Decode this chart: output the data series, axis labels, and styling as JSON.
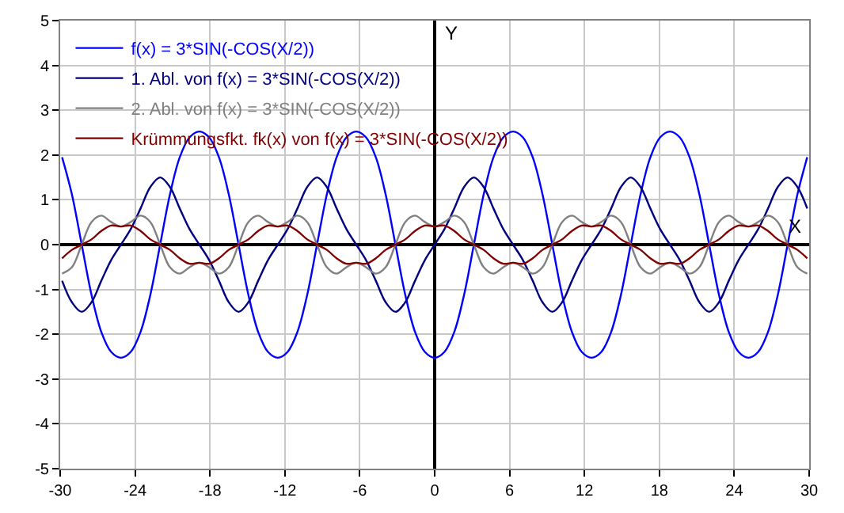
{
  "chart_data": {
    "type": "line",
    "xlabel": "X",
    "ylabel": "Y",
    "x": [
      -29.845,
      -29.06,
      -28.274,
      -27.489,
      -26.704,
      -25.918,
      -25.133,
      -24.347,
      -23.562,
      -22.777,
      -21.991,
      -21.206,
      -20.42,
      -19.635,
      -18.85,
      -18.064,
      -17.279,
      -16.493,
      -15.708,
      -14.923,
      -14.137,
      -13.352,
      -12.566,
      -11.781,
      -10.996,
      -10.21,
      -9.425,
      -8.639,
      -7.854,
      -7.069,
      -6.283,
      -5.498,
      -4.712,
      -3.927,
      -3.142,
      -2.356,
      -1.571,
      -0.785,
      0,
      0.785,
      1.571,
      2.356,
      3.142,
      3.927,
      4.712,
      5.498,
      6.283,
      7.069,
      7.854,
      8.639,
      9.425,
      10.21,
      10.996,
      11.781,
      12.566,
      13.352,
      14.137,
      14.923,
      15.708,
      16.493,
      17.279,
      18.064,
      18.85,
      19.635,
      20.42,
      21.206,
      21.991,
      22.777,
      23.562,
      24.347,
      25.133,
      25.918,
      26.704,
      27.489,
      28.274,
      29.06,
      29.845
    ],
    "series": [
      {
        "name": "f(x) = 3*SIN(-COS(X/2))",
        "color": "#0000ff",
        "values": [
          1.949,
          1.12,
          0,
          -1.12,
          -1.949,
          -2.394,
          -2.524,
          -2.394,
          -1.949,
          -1.12,
          0,
          1.12,
          1.949,
          2.394,
          2.524,
          2.394,
          1.949,
          1.12,
          0,
          -1.12,
          -1.949,
          -2.394,
          -2.524,
          -2.394,
          -1.949,
          -1.12,
          0,
          1.12,
          1.949,
          2.394,
          2.524,
          2.394,
          1.949,
          1.12,
          0,
          -1.12,
          -1.949,
          -2.394,
          -2.524,
          -2.394,
          -1.949,
          -1.12,
          0,
          1.12,
          1.949,
          2.394,
          2.524,
          2.394,
          1.949,
          1.12,
          0,
          -1.12,
          -1.949,
          -2.394,
          -2.524,
          -2.394,
          -1.949,
          -1.12,
          0,
          1.12,
          1.949,
          2.394,
          2.524,
          2.394,
          1.949,
          1.12,
          0,
          -1.12,
          -1.949,
          -2.394,
          -2.524,
          -2.394,
          -1.949,
          -1.12,
          0,
          1.12,
          1.949
        ]
      },
      {
        "name": "1. Abl. von f(x) = 3*SIN(-COS(X/2))",
        "color": "#000080",
        "values": [
          -0.806,
          -1.286,
          -1.5,
          -1.286,
          -0.806,
          -0.346,
          0,
          0.346,
          0.806,
          1.286,
          1.5,
          1.286,
          0.806,
          0.346,
          0,
          -0.346,
          -0.806,
          -1.286,
          -1.5,
          -1.286,
          -0.806,
          -0.346,
          0,
          0.346,
          0.806,
          1.286,
          1.5,
          1.286,
          0.806,
          0.346,
          0,
          -0.346,
          -0.806,
          -1.286,
          -1.5,
          -1.286,
          -0.806,
          -0.346,
          0,
          0.346,
          0.806,
          1.286,
          1.5,
          1.286,
          0.806,
          0.346,
          0,
          -0.346,
          -0.806,
          -1.286,
          -1.5,
          -1.286,
          -0.806,
          -0.346,
          0,
          0.346,
          0.806,
          1.286,
          1.5,
          1.286,
          0.806,
          0.346,
          0,
          -0.346,
          -0.806,
          -1.286,
          -1.5,
          -1.286,
          -0.806,
          -0.346,
          0,
          0.346,
          0.806,
          1.286,
          1.5,
          1.286,
          0.806
        ]
      },
      {
        "name": "2. Abl. von f(x) = 3*SIN(-COS(X/2))",
        "color": "#808080",
        "values": [
          -0.647,
          -0.505,
          0,
          0.505,
          0.647,
          0.505,
          0.405,
          0.505,
          0.647,
          0.505,
          0,
          -0.505,
          -0.647,
          -0.505,
          -0.405,
          -0.505,
          -0.647,
          -0.505,
          0,
          0.505,
          0.647,
          0.505,
          0.405,
          0.505,
          0.647,
          0.505,
          0,
          -0.505,
          -0.647,
          -0.505,
          -0.405,
          -0.505,
          -0.647,
          -0.505,
          0,
          0.505,
          0.647,
          0.505,
          0.405,
          0.505,
          0.647,
          0.505,
          0,
          -0.505,
          -0.647,
          -0.505,
          -0.405,
          -0.505,
          -0.647,
          -0.505,
          0,
          0.505,
          0.647,
          0.505,
          0.405,
          0.505,
          0.647,
          0.505,
          0,
          -0.505,
          -0.647,
          -0.505,
          -0.405,
          -0.505,
          -0.647,
          -0.505,
          0,
          0.505,
          0.647,
          0.505,
          0.405,
          0.505,
          0.647,
          0.505,
          0,
          -0.505,
          -0.647
        ]
      },
      {
        "name": "Krümmungsfkt. fk(x) von f(x) = 3*SIN(-COS(X/2))",
        "color": "#800000",
        "values": [
          -0.305,
          -0.117,
          0,
          0.117,
          0.305,
          0.426,
          0.405,
          0.426,
          0.305,
          0.117,
          0,
          -0.117,
          -0.305,
          -0.426,
          -0.405,
          -0.426,
          -0.305,
          -0.117,
          0,
          0.117,
          0.305,
          0.426,
          0.405,
          0.426,
          0.305,
          0.117,
          0,
          -0.117,
          -0.305,
          -0.426,
          -0.405,
          -0.426,
          -0.305,
          -0.117,
          0,
          0.117,
          0.305,
          0.426,
          0.405,
          0.426,
          0.305,
          0.117,
          0,
          -0.117,
          -0.305,
          -0.426,
          -0.405,
          -0.426,
          -0.305,
          -0.117,
          0,
          0.117,
          0.305,
          0.426,
          0.405,
          0.426,
          0.305,
          0.117,
          0,
          -0.117,
          -0.305,
          -0.426,
          -0.405,
          -0.426,
          -0.305,
          -0.117,
          0,
          0.117,
          0.305,
          0.426,
          0.405,
          0.426,
          0.305,
          0.117,
          0,
          -0.117,
          -0.305
        ]
      }
    ],
    "xlim": [
      -30,
      30
    ],
    "xticks": [
      -30,
      -24,
      -18,
      -12,
      -6,
      0,
      6,
      12,
      18,
      24,
      30
    ],
    "ylim": [
      -5,
      5
    ],
    "yticks": [
      -5,
      -4,
      -3,
      -2,
      -1,
      0,
      1,
      2,
      3,
      4,
      5
    ],
    "grid": true,
    "legend": "top left",
    "marker": "none",
    "line_style": "solid"
  }
}
